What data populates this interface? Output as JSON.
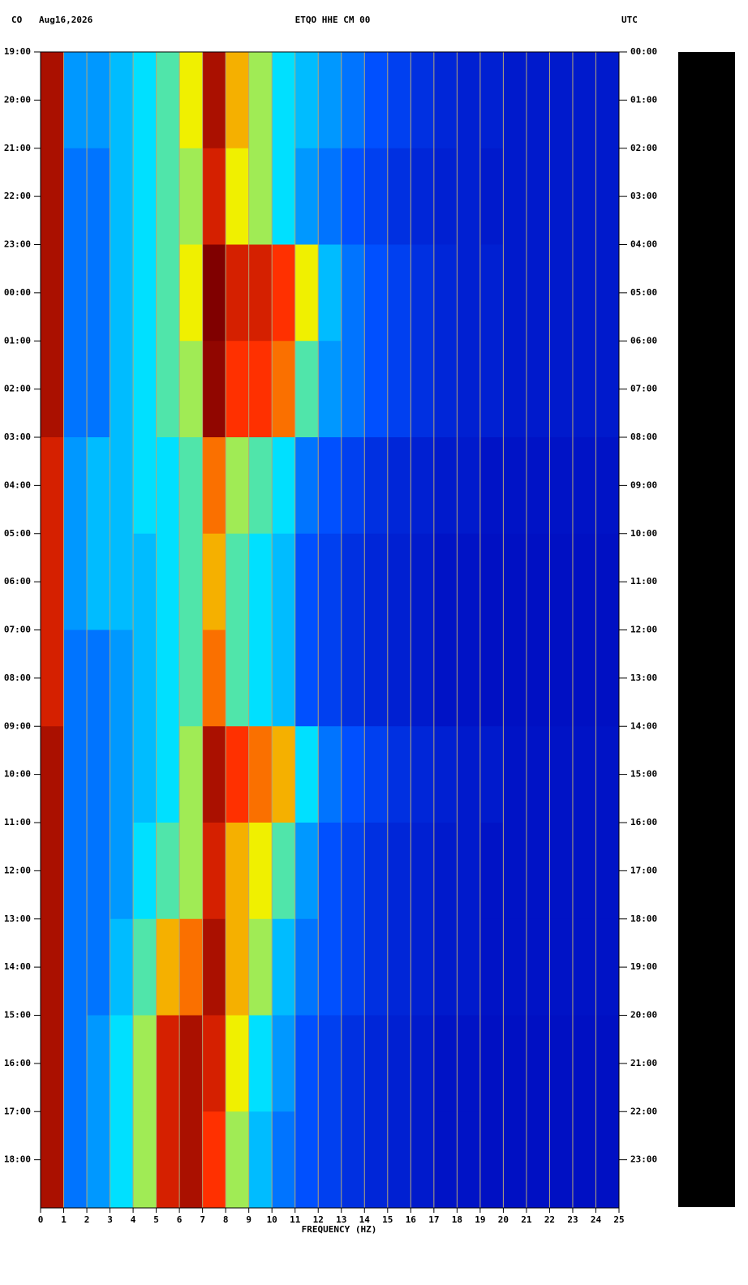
{
  "chart_data": {
    "type": "spectrogram",
    "title": "ETQO HHE CM 00",
    "network": "CO",
    "date": "Aug16,2026",
    "right_label": "UTC",
    "xlabel": "FREQUENCY (HZ)",
    "xlim": [
      0,
      25
    ],
    "xticks": [
      0,
      1,
      2,
      3,
      4,
      5,
      6,
      7,
      8,
      9,
      10,
      11,
      12,
      13,
      14,
      15,
      16,
      17,
      18,
      19,
      20,
      21,
      22,
      23,
      24,
      25
    ],
    "ylim": [
      0,
      24
    ],
    "yticks": [
      {
        "value": 0,
        "label": "19:00"
      },
      {
        "value": 1,
        "label": "20:00"
      },
      {
        "value": 2,
        "label": "21:00"
      },
      {
        "value": 3,
        "label": "22:00"
      },
      {
        "value": 4,
        "label": "23:00"
      },
      {
        "value": 5,
        "label": "00:00"
      },
      {
        "value": 6,
        "label": "01:00"
      },
      {
        "value": 7,
        "label": "02:00"
      },
      {
        "value": 8,
        "label": "03:00"
      },
      {
        "value": 9,
        "label": "04:00"
      },
      {
        "value": 10,
        "label": "05:00"
      },
      {
        "value": 11,
        "label": "06:00"
      },
      {
        "value": 12,
        "label": "07:00"
      },
      {
        "value": 13,
        "label": "08:00"
      },
      {
        "value": 14,
        "label": "09:00"
      },
      {
        "value": 15,
        "label": "10:00"
      },
      {
        "value": 16,
        "label": "11:00"
      },
      {
        "value": 17,
        "label": "12:00"
      },
      {
        "value": 18,
        "label": "13:00"
      },
      {
        "value": 19,
        "label": "14:00"
      },
      {
        "value": 20,
        "label": "15:00"
      },
      {
        "value": 21,
        "label": "16:00"
      },
      {
        "value": 22,
        "label": "17:00"
      },
      {
        "value": 23,
        "label": "18:00"
      }
    ],
    "y2ticks": [
      {
        "value": 0,
        "label": "00:00"
      },
      {
        "value": 1,
        "label": "01:00"
      },
      {
        "value": 2,
        "label": "02:00"
      },
      {
        "value": 3,
        "label": "03:00"
      },
      {
        "value": 4,
        "label": "04:00"
      },
      {
        "value": 5,
        "label": "05:00"
      },
      {
        "value": 6,
        "label": "06:00"
      },
      {
        "value": 7,
        "label": "07:00"
      },
      {
        "value": 8,
        "label": "08:00"
      },
      {
        "value": 9,
        "label": "09:00"
      },
      {
        "value": 10,
        "label": "10:00"
      },
      {
        "value": 11,
        "label": "11:00"
      },
      {
        "value": 12,
        "label": "12:00"
      },
      {
        "value": 13,
        "label": "13:00"
      },
      {
        "value": 14,
        "label": "14:00"
      },
      {
        "value": 15,
        "label": "15:00"
      },
      {
        "value": 16,
        "label": "16:00"
      },
      {
        "value": 17,
        "label": "17:00"
      },
      {
        "value": 18,
        "label": "18:00"
      },
      {
        "value": 19,
        "label": "19:00"
      },
      {
        "value": 20,
        "label": "20:00"
      },
      {
        "value": 21,
        "label": "21:00"
      },
      {
        "value": 22,
        "label": "22:00"
      },
      {
        "value": 23,
        "label": "23:00"
      }
    ],
    "grid": true,
    "grid_color": "#b4a878",
    "time_bins": [
      0,
      2,
      4,
      6,
      8,
      10,
      12,
      14,
      16,
      18,
      20,
      22,
      24
    ],
    "frequency_bins": [
      0,
      1,
      2,
      3,
      4,
      5,
      6,
      7,
      8,
      9,
      10,
      11,
      12,
      13,
      14,
      15,
      16,
      17,
      18,
      19,
      20,
      21,
      22,
      23,
      24,
      25
    ],
    "colormap": [
      {
        "value": 0,
        "color": "#0000b4"
      },
      {
        "value": 25,
        "color": "#0050ff"
      },
      {
        "value": 45,
        "color": "#00e0ff"
      },
      {
        "value": 60,
        "color": "#f0f000"
      },
      {
        "value": 75,
        "color": "#ff3000"
      },
      {
        "value": 90,
        "color": "#800000"
      }
    ],
    "intensity": [
      [
        85,
        35,
        35,
        40,
        45,
        50,
        60,
        85,
        65,
        55,
        45,
        40,
        35,
        30,
        25,
        20,
        15,
        12,
        10,
        10,
        8,
        8,
        8,
        8,
        8
      ],
      [
        85,
        30,
        30,
        40,
        45,
        50,
        55,
        80,
        60,
        55,
        45,
        35,
        30,
        25,
        20,
        15,
        12,
        10,
        10,
        8,
        8,
        8,
        8,
        8,
        8
      ],
      [
        85,
        30,
        30,
        40,
        45,
        50,
        60,
        90,
        80,
        80,
        75,
        60,
        40,
        30,
        25,
        20,
        15,
        12,
        10,
        10,
        8,
        8,
        8,
        8,
        8
      ],
      [
        85,
        30,
        30,
        40,
        45,
        50,
        55,
        88,
        75,
        75,
        70,
        50,
        35,
        30,
        25,
        20,
        15,
        12,
        10,
        10,
        8,
        8,
        8,
        8,
        8
      ],
      [
        80,
        35,
        40,
        40,
        45,
        45,
        50,
        70,
        55,
        50,
        45,
        30,
        25,
        20,
        15,
        12,
        10,
        8,
        8,
        6,
        6,
        6,
        6,
        6,
        6
      ],
      [
        80,
        35,
        40,
        40,
        40,
        45,
        50,
        65,
        50,
        45,
        40,
        25,
        20,
        15,
        12,
        10,
        8,
        6,
        6,
        5,
        5,
        5,
        5,
        5,
        5
      ],
      [
        80,
        30,
        30,
        35,
        40,
        45,
        50,
        70,
        50,
        45,
        40,
        25,
        20,
        15,
        12,
        10,
        8,
        6,
        6,
        5,
        5,
        5,
        5,
        5,
        5
      ],
      [
        85,
        30,
        30,
        35,
        40,
        45,
        55,
        85,
        75,
        70,
        65,
        45,
        30,
        25,
        20,
        15,
        12,
        10,
        8,
        8,
        6,
        6,
        6,
        6,
        6
      ],
      [
        85,
        30,
        30,
        35,
        45,
        50,
        55,
        80,
        65,
        60,
        50,
        35,
        25,
        20,
        15,
        12,
        10,
        8,
        8,
        6,
        6,
        6,
        6,
        6,
        6
      ],
      [
        85,
        30,
        30,
        40,
        50,
        65,
        70,
        85,
        65,
        55,
        40,
        30,
        25,
        20,
        15,
        12,
        10,
        8,
        8,
        6,
        6,
        6,
        6,
        6,
        6
      ],
      [
        85,
        30,
        35,
        45,
        55,
        80,
        85,
        80,
        60,
        45,
        35,
        25,
        20,
        15,
        12,
        10,
        8,
        6,
        6,
        5,
        5,
        5,
        5,
        5,
        5
      ],
      [
        85,
        30,
        35,
        45,
        55,
        80,
        85,
        75,
        55,
        40,
        30,
        25,
        20,
        15,
        12,
        10,
        8,
        6,
        6,
        5,
        5,
        5,
        5,
        5,
        5
      ]
    ]
  }
}
